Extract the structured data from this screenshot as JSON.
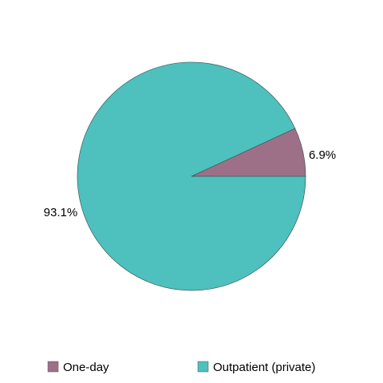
{
  "chart_data": {
    "type": "pie",
    "categories": [
      "One-day",
      "Outpatient (private)"
    ],
    "values": [
      6.9,
      93.1
    ],
    "value_labels": [
      "6.9%",
      "93.1%"
    ],
    "colors": [
      "#9e7088",
      "#4ec0bd"
    ],
    "legend": "bottom"
  }
}
